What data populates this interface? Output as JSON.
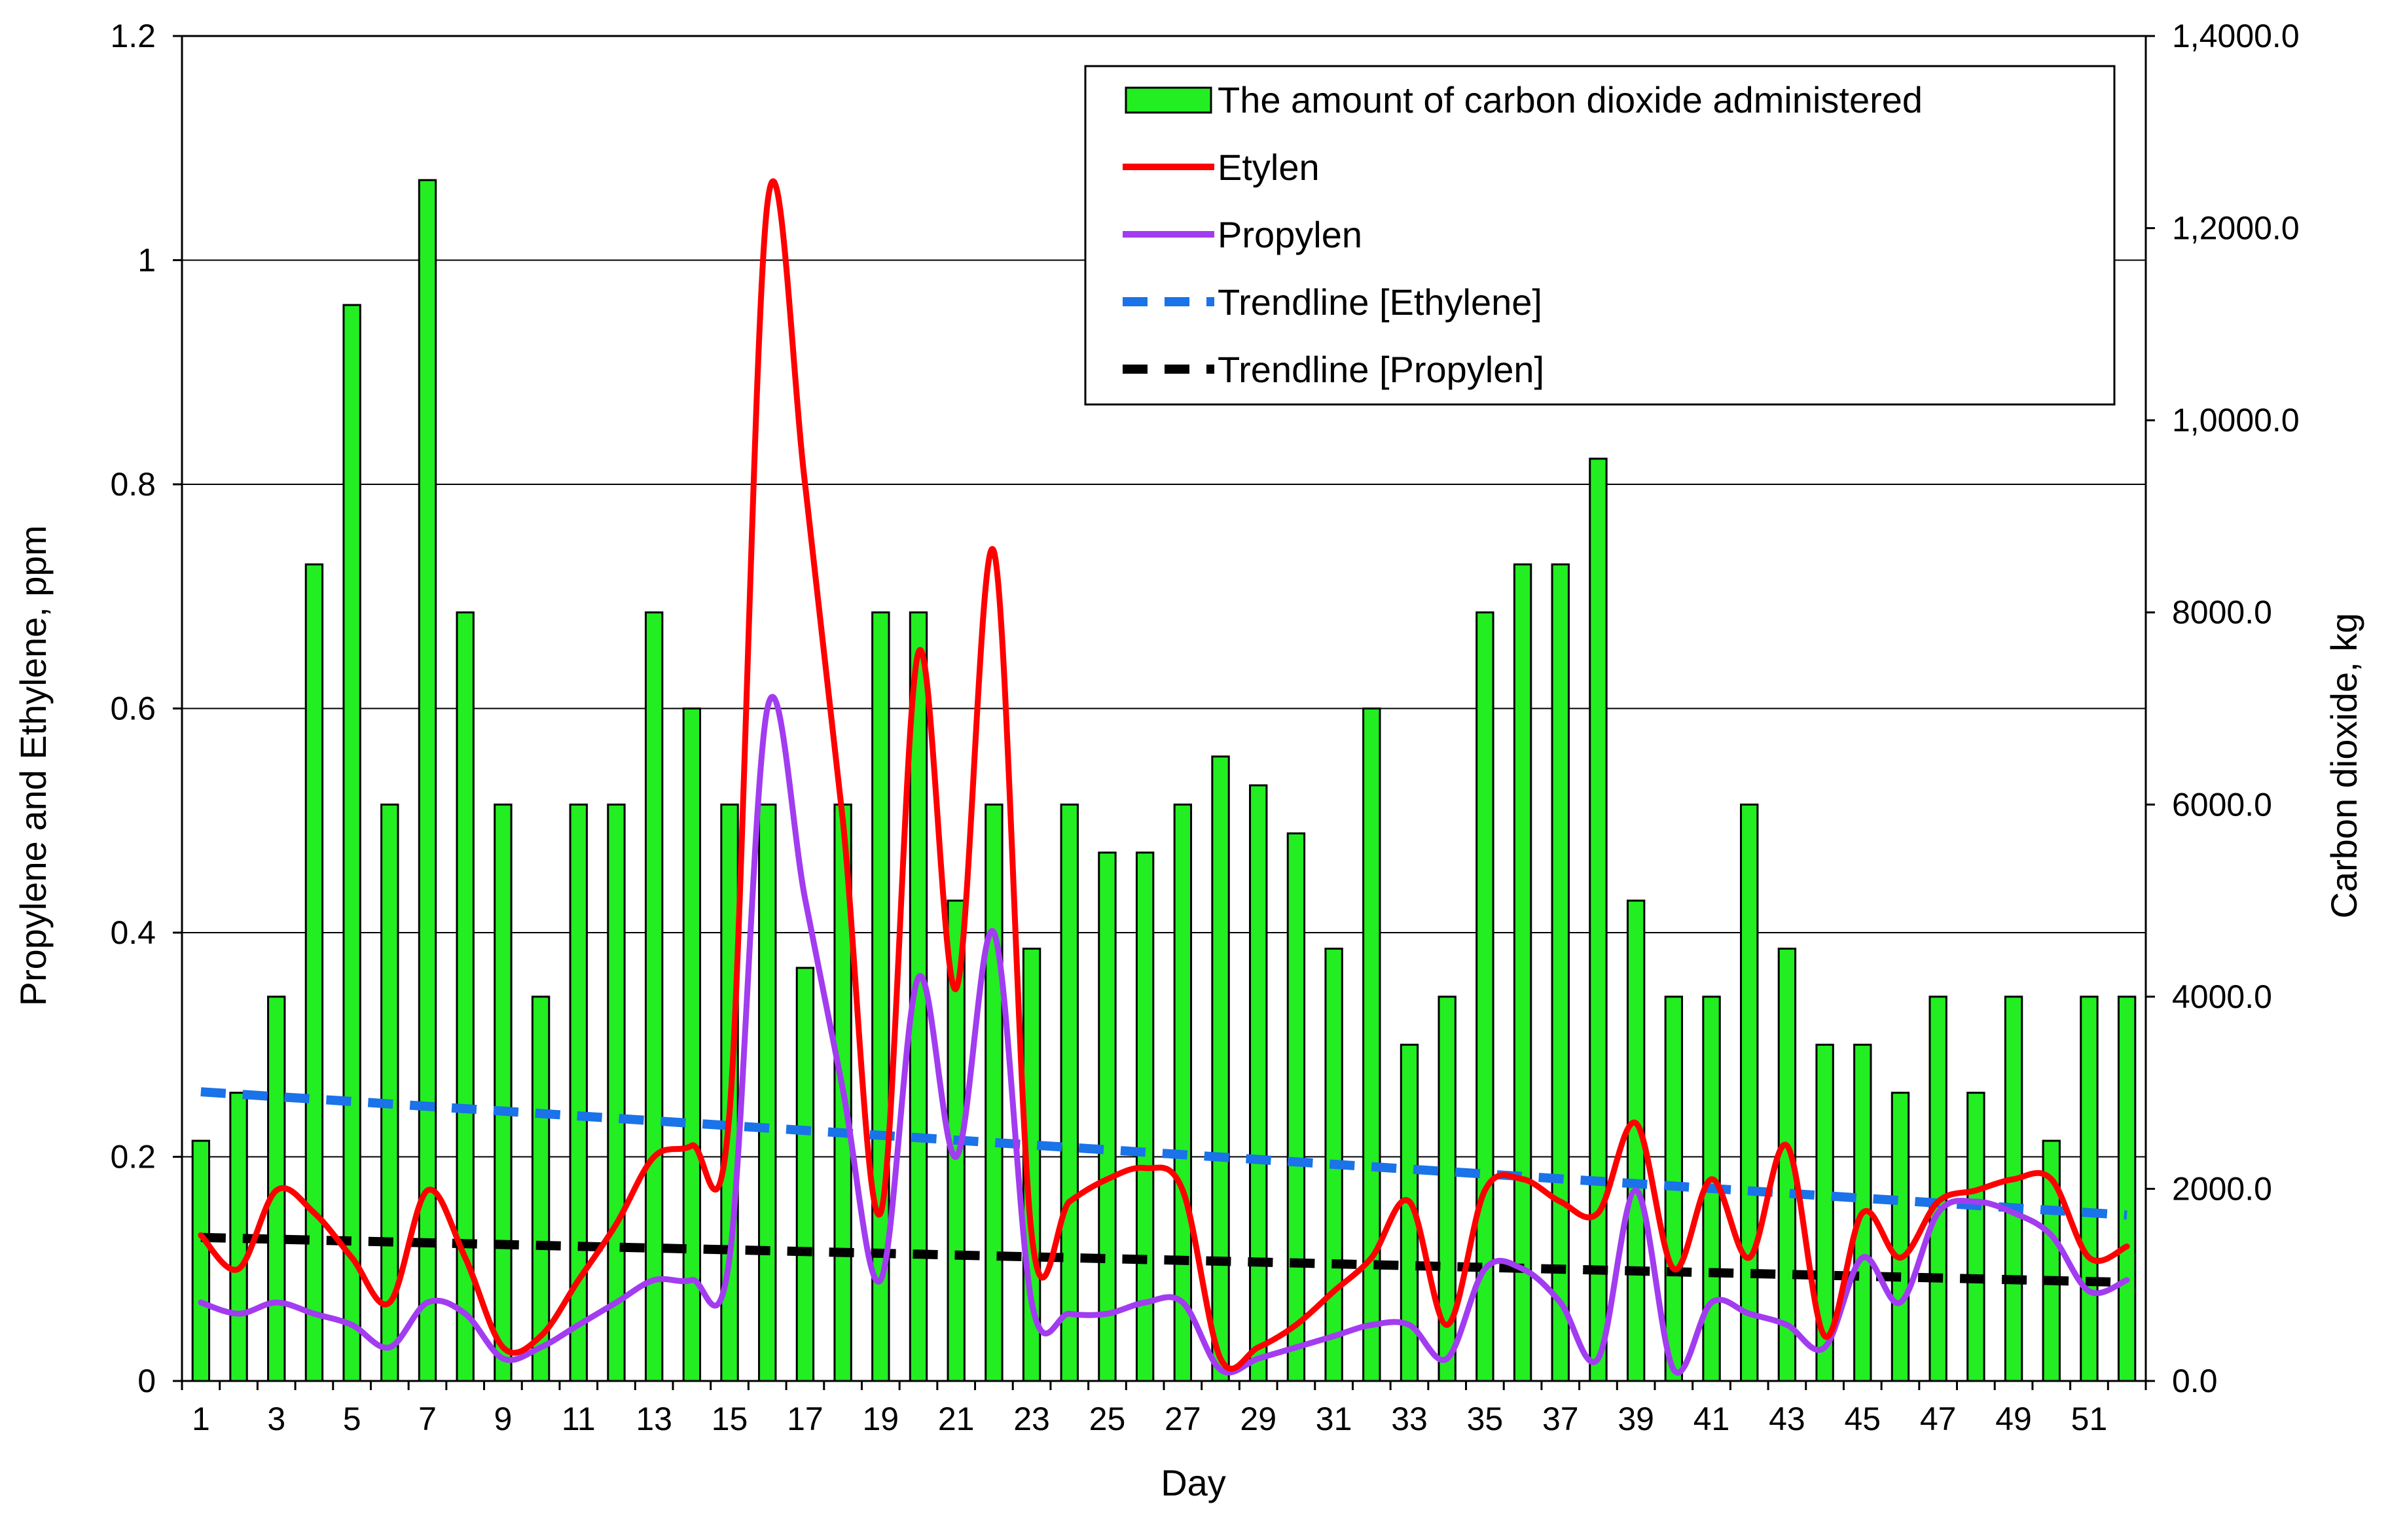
{
  "chart_data": {
    "type": "bar+line",
    "title": "",
    "xlabel": "Day",
    "ylabel_left": "Propylene and Ethylene, ppm",
    "ylabel_right": "Carbon dioxide, kg",
    "ylim_left": [
      0,
      1.2
    ],
    "ylim_right": [
      0,
      14000
    ],
    "yticks_left": [
      "0",
      "0.2",
      "0.4",
      "0.6",
      "0.8",
      "1",
      "1.2"
    ],
    "yticks_right": [
      "0.0",
      "2000.0",
      "4000.0",
      "6000.0",
      "8000.0",
      "1,0000.0",
      "1,2000.0",
      "1,4000.0"
    ],
    "xticks": [
      "1",
      "3",
      "5",
      "7",
      "9",
      "11",
      "13",
      "15",
      "17",
      "19",
      "21",
      "23",
      "25",
      "27",
      "29",
      "31",
      "33",
      "35",
      "37",
      "39",
      "41",
      "43",
      "45",
      "47",
      "49",
      "51"
    ],
    "days": [
      1,
      2,
      3,
      4,
      5,
      6,
      7,
      8,
      9,
      10,
      11,
      12,
      13,
      14,
      15,
      16,
      17,
      18,
      19,
      20,
      21,
      22,
      23,
      24,
      25,
      26,
      27,
      28,
      29,
      30,
      31,
      32,
      33,
      34,
      35,
      36,
      37,
      38,
      39,
      40,
      41,
      42,
      43,
      44,
      45,
      46,
      47,
      48,
      49,
      50,
      51,
      52
    ],
    "legend": [
      {
        "key": "co2",
        "label": "The amount of carbon dioxide administered"
      },
      {
        "key": "ethylene",
        "label": "Etylen"
      },
      {
        "key": "propylene",
        "label": "Propylen"
      },
      {
        "key": "trend_ethylene",
        "label": "Trendline [Ethylene]"
      },
      {
        "key": "trend_propylene",
        "label": "Trendline [Propylen]"
      }
    ],
    "series": [
      {
        "name": "The amount of carbon dioxide administered",
        "key": "co2",
        "axis": "right",
        "kind": "bar",
        "color": "#22ee22",
        "values": [
          2500,
          3000,
          4000,
          8500,
          11200,
          6000,
          12500,
          8000,
          6000,
          4000,
          6000,
          6000,
          8000,
          7000,
          6000,
          6000,
          4300,
          6000,
          8000,
          8000,
          5000,
          6000,
          4500,
          6000,
          5500,
          5500,
          6000,
          6500,
          6200,
          5700,
          4500,
          7000,
          3500,
          4000,
          8000,
          8500,
          8500,
          9600,
          5000,
          4000,
          4000,
          6000,
          4500,
          3500,
          3500,
          3000,
          4000,
          3000,
          4000,
          2500,
          4000,
          4000
        ]
      },
      {
        "name": "Etylen",
        "key": "ethylene",
        "axis": "left",
        "kind": "line",
        "color": "#ff0000",
        "values": [
          0.13,
          0.1,
          0.17,
          0.15,
          0.11,
          0.07,
          0.17,
          0.11,
          0.03,
          0.04,
          0.09,
          0.14,
          0.2,
          0.21,
          0.24,
          1.05,
          0.8,
          0.5,
          0.15,
          0.65,
          0.35,
          0.74,
          0.13,
          0.16,
          0.18,
          0.19,
          0.17,
          0.02,
          0.03,
          0.05,
          0.08,
          0.11,
          0.16,
          0.05,
          0.17,
          0.18,
          0.16,
          0.15,
          0.23,
          0.1,
          0.18,
          0.11,
          0.21,
          0.04,
          0.15,
          0.11,
          0.16,
          0.17,
          0.18,
          0.18,
          0.11,
          0.12
        ]
      },
      {
        "name": "Propylen",
        "key": "propylene",
        "axis": "left",
        "kind": "line",
        "color": "#a23cf0",
        "values": [
          0.07,
          0.06,
          0.07,
          0.06,
          0.05,
          0.03,
          0.07,
          0.06,
          0.02,
          0.03,
          0.05,
          0.07,
          0.09,
          0.09,
          0.11,
          0.6,
          0.43,
          0.26,
          0.09,
          0.36,
          0.2,
          0.4,
          0.07,
          0.06,
          0.06,
          0.07,
          0.07,
          0.01,
          0.02,
          0.03,
          0.04,
          0.05,
          0.05,
          0.02,
          0.1,
          0.1,
          0.07,
          0.02,
          0.17,
          0.01,
          0.07,
          0.06,
          0.05,
          0.03,
          0.11,
          0.07,
          0.15,
          0.16,
          0.15,
          0.13,
          0.08,
          0.09
        ]
      },
      {
        "name": "Trendline [Ethylene]",
        "key": "trend_ethylene",
        "axis": "left",
        "kind": "dashed-line",
        "color": "#1a73e8",
        "values": [
          0.258,
          0.148
        ]
      },
      {
        "name": "Trendline [Propylen]",
        "key": "trend_propylene",
        "axis": "left",
        "kind": "dashed-line",
        "color": "#000000",
        "values": [
          0.128,
          0.088
        ]
      }
    ]
  }
}
